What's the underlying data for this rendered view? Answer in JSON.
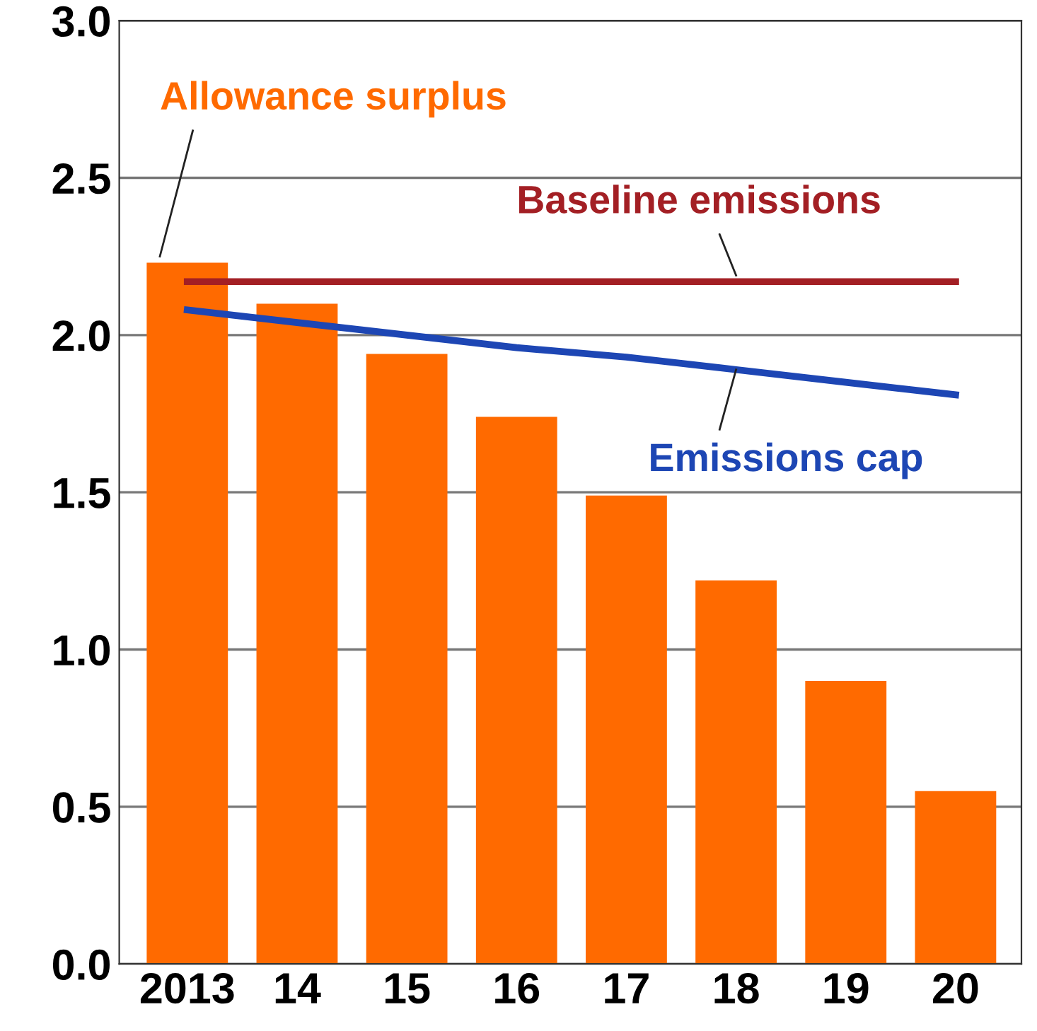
{
  "chart_data": {
    "type": "bar",
    "categories": [
      "2013",
      "14",
      "15",
      "16",
      "17",
      "18",
      "19",
      "20"
    ],
    "series": [
      {
        "name": "Allowance surplus",
        "color": "#ff6a00",
        "values": [
          2.23,
          2.1,
          1.94,
          1.74,
          1.49,
          1.22,
          0.9,
          0.55
        ]
      },
      {
        "name": "Baseline emissions",
        "type": "line",
        "color": "#a31f24",
        "values": [
          2.17,
          2.17,
          2.17,
          2.17,
          2.17,
          2.17,
          2.17,
          2.17
        ]
      },
      {
        "name": "Emissions cap",
        "type": "line",
        "color": "#1d46b4",
        "values": [
          2.08,
          2.04,
          2.0,
          1.96,
          1.93,
          1.89,
          1.85,
          1.81
        ]
      }
    ],
    "ylim": [
      0,
      3
    ],
    "yticks": [
      {
        "value": 0,
        "label": "0.0"
      },
      0.5,
      {
        "value": 1,
        "label": "1.0"
      },
      1.5,
      {
        "value": 2,
        "label": "2.0"
      },
      2.5,
      {
        "value": 3,
        "label": "3.0"
      }
    ],
    "grid": "y",
    "legend": false,
    "marker": "none",
    "line_style": "solid"
  }
}
